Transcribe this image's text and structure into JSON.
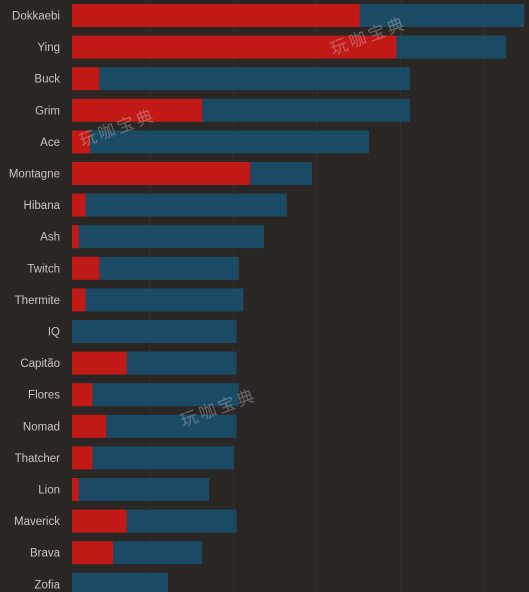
{
  "chart_data": {
    "type": "bar",
    "orientation": "horizontal",
    "stacked": true,
    "title": "",
    "xlabel": "",
    "ylabel": "",
    "grid": true,
    "xlim": [
      0,
      100
    ],
    "categories": [
      "Dokkaebi",
      "Ying",
      "Buck",
      "Grim",
      "Ace",
      "Montagne",
      "Hibana",
      "Ash",
      "Twitch",
      "Thermite",
      "IQ",
      "Capitão",
      "Flores",
      "Nomad",
      "Thatcher",
      "Lion",
      "Maverick",
      "Brava",
      "Zofia"
    ],
    "series": [
      {
        "color": "#c11a16",
        "values": [
          63,
          71,
          6,
          28.5,
          4,
          39,
          3,
          1.5,
          6,
          3,
          0,
          12,
          4.5,
          7.5,
          4.5,
          1.5,
          12,
          9,
          0
        ]
      },
      {
        "color": "#1b4a64",
        "values": [
          36,
          24,
          68,
          45.5,
          61,
          13.5,
          44,
          40.5,
          30.5,
          34.5,
          36,
          24,
          32,
          28.5,
          31,
          28.5,
          24,
          19.5,
          21
        ]
      }
    ]
  },
  "watermark": "玩咖宝典"
}
